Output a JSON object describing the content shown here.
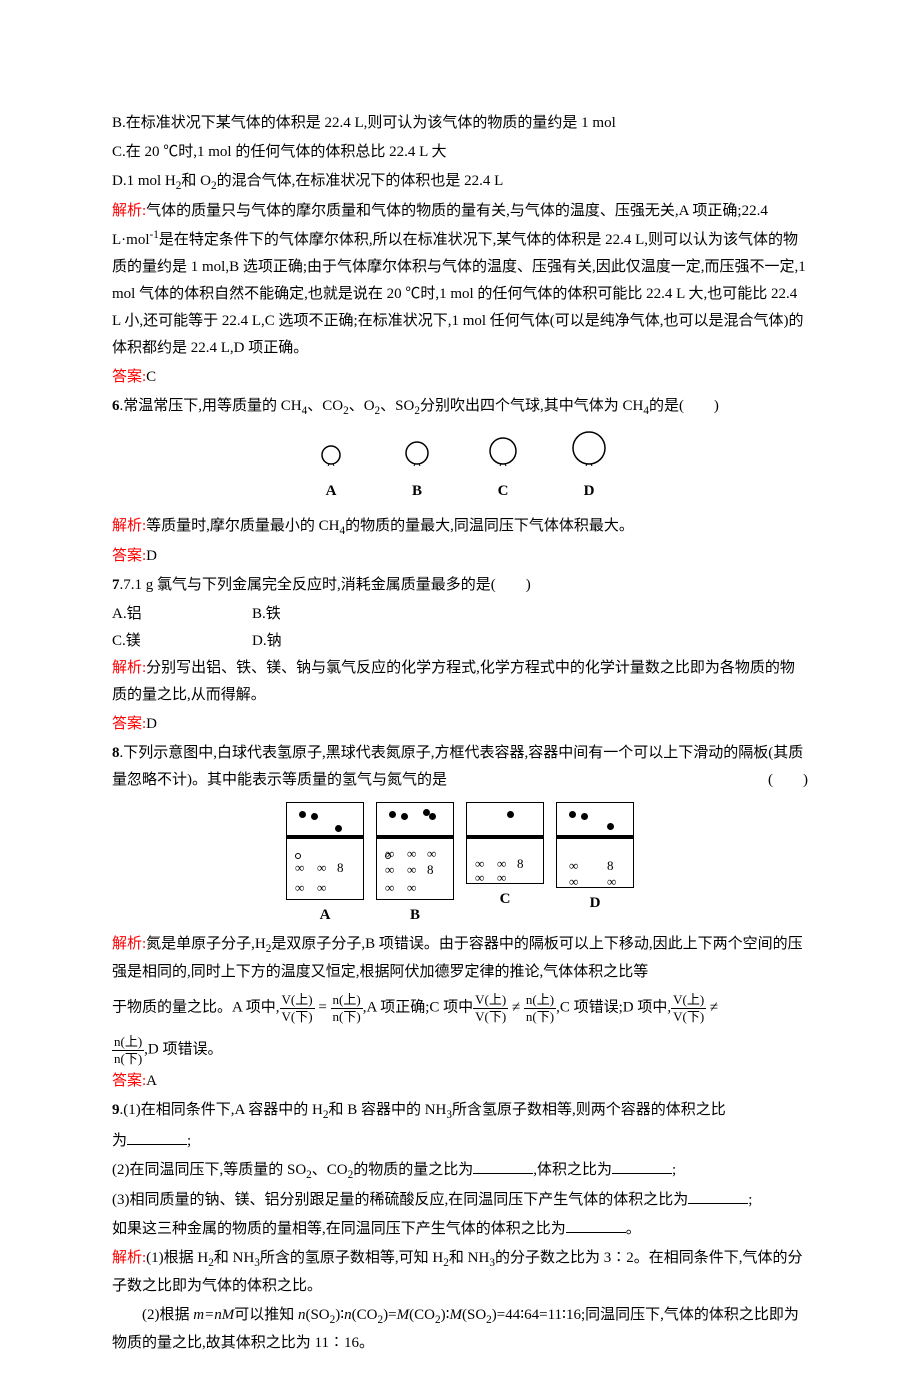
{
  "optB": "B.在标准状况下某气体的体积是 22.4 L,则可认为该气体的物质的量约是 1 mol",
  "optC": "C.在 20 ℃时,1 mol 的任何气体的体积总比 22.4 L 大",
  "optD_pre": "D.1 mol H",
  "optD_mid": "和 O",
  "optD_post": "的混合气体,在标准状况下的体积也是 22.4 L",
  "jiexi_label": "解析:",
  "jiexi5_a": "气体的质量只与气体的摩尔质量和气体的物质的量有关,与气体的温度、压强无关,A 项正确;22.4 L·mol",
  "jiexi5_b": "是在特定条件下的气体摩尔体积,所以在标准状况下,某气体的体积是 22.4 L,则可以认为该气体的物质的量约是 1 mol,B 选项正确;由于气体摩尔体积与气体的温度、压强有关,因此仅温度一定,而压强不一定,1 mol 气体的体积自然不能确定,也就是说在 20 ℃时,1 mol 的任何气体的体积可能比 22.4 L 大,也可能比 22.4 L 小,还可能等于 22.4 L,C 选项不正确;在标准状况下,1 mol 任何气体(可以是纯净气体,也可以是混合气体)的体积都约是 22.4 L,D 项正确。",
  "daan_label": "答案:",
  "daan5": "C",
  "q6_num": "6",
  "q6_a": ".常温常压下,用等质量的 CH",
  "q6_b": "、CO",
  "q6_c": "、O",
  "q6_d": "、SO",
  "q6_e": "分别吹出四个气球,其中气体为 CH",
  "q6_f": "的是(　　)",
  "balloons": [
    {
      "label": "A",
      "r": 9
    },
    {
      "label": "B",
      "r": 11
    },
    {
      "label": "C",
      "r": 13
    },
    {
      "label": "D",
      "r": 16
    }
  ],
  "balloon_stroke": "#000000",
  "balloon_fill": "#ffffff",
  "jiexi6_a": "等质量时,摩尔质量最小的 CH",
  "jiexi6_b": "的物质的量最大,同温同压下气体体积最大。",
  "daan6": "D",
  "q7_num": "7",
  "q7": ".7.1 g 氯气与下列金属完全反应时,消耗金属质量最多的是(　　)",
  "q7_opts": {
    "A": "A.铝",
    "B": "B.铁",
    "C": "C.镁",
    "D": "D.钠"
  },
  "jiexi7": "分别写出铝、铁、镁、钠与氯气反应的化学方程式,化学方程式中的化学计量数之比即为各物质的物质的量之比,从而得解。",
  "daan7": "D",
  "q8_num": "8",
  "q8": ".下列示意图中,白球代表氢原子,黑球代表氮原子,方框代表容器,容器中间有一个可以上下滑动的隔板(其质量忽略不计)。其中能表示等质量的氢气与氮气的是",
  "q8_end": "(　　)",
  "containers": [
    {
      "label": "A",
      "bot_h": 60
    },
    {
      "label": "B",
      "bot_h": 60
    },
    {
      "label": "C",
      "bot_h": 44
    },
    {
      "label": "D",
      "bot_h": 48
    }
  ],
  "jiexi8_a": "氮是单原子分子,H",
  "jiexi8_b": "是双原子分子,B 项错误。由于容器中的隔板可以上下移动,因此上下两个空间的压强是相同的,同时上下方的温度又恒定,根据阿伏加德罗定律的推论,气体体积之比等",
  "jiexi8_c": "于物质的量之比。A 项中,",
  "frac_vup": "V(上)",
  "frac_vdn": "V(下)",
  "frac_nup": "n(上)",
  "frac_ndn": "n(下)",
  "jiexi8_d": ",A 项正确;C 项中",
  "jiexi8_e": ",C 项错误;D 项中,",
  "jiexi8_f": ",D 项错误。",
  "daan8": "A",
  "q9_num": "9",
  "q9_1a": ".(1)在相同条件下,A 容器中的 H",
  "q9_1b": "和 B 容器中的 NH",
  "q9_1c": "所含氢原子数相等,则两个容器的体积之比",
  "q9_1d": "为",
  "q9_1e": ";",
  "q9_2a": "(2)在同温同压下,等质量的 SO",
  "q9_2b": "、CO",
  "q9_2c": "的物质的量之比为",
  "q9_2d": ",体积之比为",
  "q9_2e": ";",
  "q9_3a": "(3)相同质量的钠、镁、铝分别跟足量的稀硫酸反应,在同温同压下产生气体的体积之比为",
  "q9_3b": ";",
  "q9_3c": "如果这三种金属的物质的量相等,在同温同压下产生气体的体积之比为",
  "q9_3d": "。",
  "jiexi9_1a": "(1)根据 H",
  "jiexi9_1b": "和 NH",
  "jiexi9_1c": "所含的氢原子数相等,可知 H",
  "jiexi9_1d": "和 NH",
  "jiexi9_1e": "的分子数之比为 3∶2。在相同条件下,气体的分子数之比即为气体的体积之比。",
  "jiexi9_2a": "(2)根据 ",
  "jiexi9_2b": "m=nM",
  "jiexi9_2c": "可以推知 ",
  "jiexi9_2d": "n",
  "jiexi9_2e": "(SO",
  "jiexi9_2f": ")∶",
  "jiexi9_2g": "(CO",
  "jiexi9_2h": ")=",
  "jiexi9_2i": "M",
  "jiexi9_2j": "(CO",
  "jiexi9_2k": ")∶",
  "jiexi9_2l": "(SO",
  "jiexi9_2m": ")=44∶64=11∶16;同温同压下,气体的体积之比即为物质的量之比,故其体积之比为 11∶16。"
}
